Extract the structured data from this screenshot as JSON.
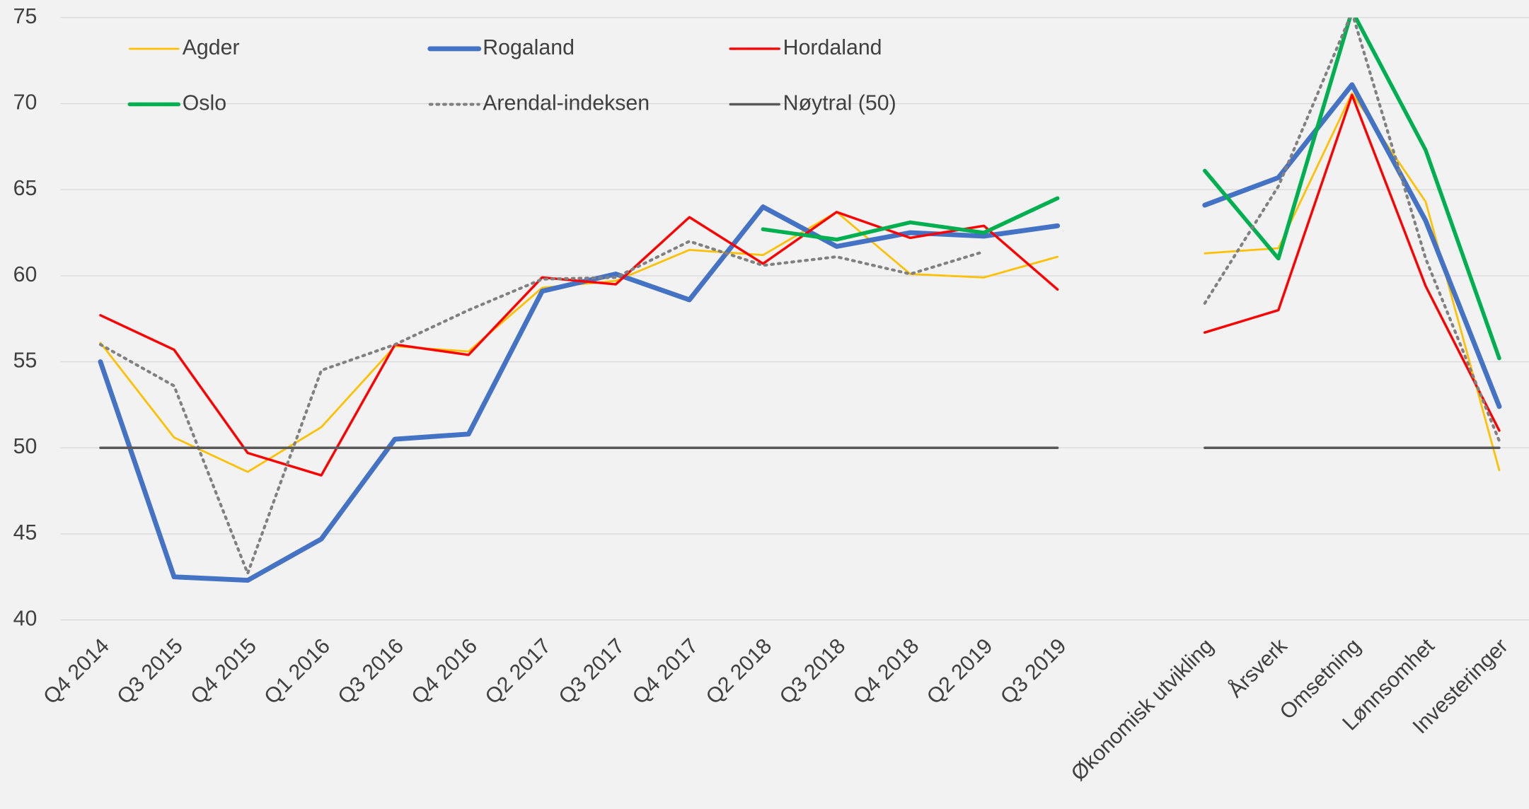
{
  "chart_data": {
    "type": "line",
    "categories": [
      "Q4 2014",
      "Q3 2015",
      "Q4 2015",
      "Q1 2016",
      "Q3 2016",
      "Q4 2016",
      "Q2 2017",
      "Q3 2017",
      "Q4 2017",
      "Q2 2018",
      "Q3 2018",
      "Q4 2018",
      "Q2 2019",
      "Q3 2019",
      null,
      "Økonomisk utvikling",
      "Årsverk",
      "Omsetning",
      "Lønnsomhet",
      "Investeringer"
    ],
    "series": [
      {
        "name": "Agder",
        "color": "#ffc000",
        "values": [
          56.1,
          50.6,
          48.6,
          51.2,
          55.9,
          55.6,
          59.3,
          59.7,
          61.5,
          61.2,
          63.7,
          60.1,
          59.9,
          61.1,
          null,
          61.3,
          61.6,
          70.6,
          64.3,
          48.7
        ]
      },
      {
        "name": "Rogaland",
        "color": "#4472c4",
        "values": [
          55.0,
          42.5,
          42.3,
          44.7,
          50.5,
          50.8,
          59.1,
          60.1,
          58.6,
          64.0,
          61.7,
          62.5,
          62.3,
          62.9,
          null,
          64.1,
          65.7,
          71.1,
          63.2,
          52.4
        ]
      },
      {
        "name": "Hordaland",
        "color": "#ff0000",
        "values": [
          57.7,
          55.7,
          49.7,
          48.4,
          56.0,
          55.4,
          59.9,
          59.5,
          63.4,
          60.7,
          63.7,
          62.2,
          62.9,
          59.2,
          null,
          56.7,
          58.0,
          70.5,
          59.4,
          51.0
        ]
      },
      {
        "name": "Oslo",
        "color": "#00b050",
        "values": [
          null,
          null,
          null,
          null,
          null,
          null,
          null,
          null,
          null,
          62.7,
          62.1,
          63.1,
          62.5,
          64.5,
          null,
          66.1,
          61.0,
          75.4,
          67.3,
          55.2
        ]
      },
      {
        "name": "Arendal-indeksen",
        "color": "#808080",
        "values": [
          56.0,
          53.6,
          42.7,
          54.5,
          56.0,
          58.0,
          59.8,
          59.9,
          62.0,
          60.6,
          61.1,
          60.1,
          61.4,
          null,
          null,
          58.4,
          65.2,
          75.3,
          61.0,
          50.4
        ]
      },
      {
        "name": "Nøytral (50)",
        "color": "#595959",
        "values": [
          50,
          50,
          50,
          50,
          50,
          50,
          50,
          50,
          50,
          50,
          50,
          50,
          50,
          50,
          null,
          50,
          50,
          50,
          50,
          50
        ]
      }
    ],
    "ylim": [
      40,
      75
    ],
    "yticks": [
      40,
      45,
      50,
      55,
      60,
      65,
      70,
      75
    ],
    "grid": true,
    "legend": "top-left"
  }
}
